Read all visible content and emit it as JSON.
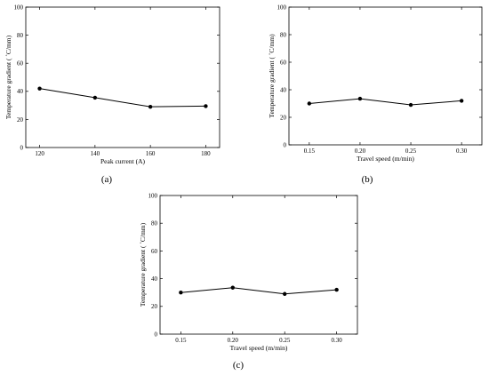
{
  "chart_data": [
    {
      "type": "line",
      "panel_label": "(a)",
      "x": [
        120,
        140,
        160,
        180
      ],
      "y": [
        42,
        35.5,
        29,
        29.5
      ],
      "xticks": [
        "120",
        "140",
        "160",
        "180"
      ],
      "yticks": [
        "0",
        "20",
        "40",
        "60",
        "80",
        "100"
      ],
      "xlim": [
        115,
        185
      ],
      "ylim": [
        0,
        100
      ],
      "xlabel": "Peak current (A)",
      "ylabel": "Temperature gradient ( ˚C/mm)",
      "title": "",
      "grid": false,
      "marker": "circle"
    },
    {
      "type": "line",
      "panel_label": "(b)",
      "x": [
        0.15,
        0.2,
        0.25,
        0.3
      ],
      "y": [
        30,
        33.5,
        29,
        32
      ],
      "xticks": [
        "0.15",
        "0.20",
        "0.25",
        "0.30"
      ],
      "yticks": [
        "0",
        "20",
        "40",
        "60",
        "80",
        "100"
      ],
      "xlim": [
        0.13,
        0.32
      ],
      "ylim": [
        0,
        100
      ],
      "xlabel": "Travel speed (m/min)",
      "ylabel": "Temperature gradient ( ˚C/mm)",
      "title": "",
      "grid": false,
      "marker": "circle"
    },
    {
      "type": "line",
      "panel_label": "(c)",
      "x": [
        0.15,
        0.2,
        0.25,
        0.3
      ],
      "y": [
        30,
        33.5,
        29,
        32
      ],
      "xticks": [
        "0.15",
        "0.20",
        "0.25",
        "0.30"
      ],
      "yticks": [
        "0",
        "20",
        "40",
        "60",
        "80",
        "100"
      ],
      "xlim": [
        0.13,
        0.32
      ],
      "ylim": [
        0,
        100
      ],
      "xlabel": "Travel speed (m/min)",
      "ylabel": "Temperature gradient ( ˚C/mm)",
      "title": "",
      "grid": false,
      "marker": "circle"
    }
  ],
  "colors": {
    "line": "#000000",
    "axis": "#000000",
    "background": "#ffffff"
  }
}
